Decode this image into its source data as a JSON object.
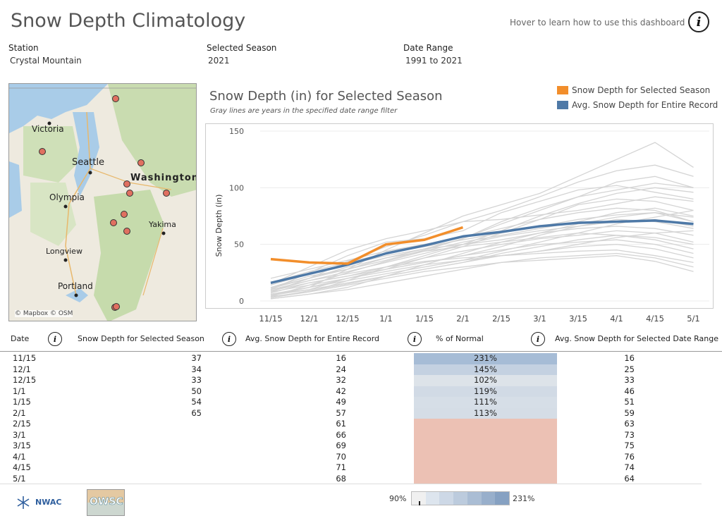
{
  "header": {
    "title": "Snow Depth Climatology",
    "hover_help": "Hover to learn how to use this dashboard"
  },
  "filters": {
    "station_label": "Station",
    "station_value": "Crystal Mountain",
    "season_label": "Selected Season",
    "season_value": "2021",
    "range_label": "Date Range",
    "range_value": "1991 to 2021"
  },
  "map": {
    "labels": {
      "victoria": "Victoria",
      "seattle": "Seattle",
      "washington": "Washington",
      "olympia": "Olympia",
      "yakima": "Yakima",
      "longview": "Longview",
      "portland": "Portland"
    },
    "attribution": "© Mapbox © OSM"
  },
  "chart_title": "Snow Depth (in) for Selected Season",
  "chart_subtitle": "Gray lines are years in the specified date range filter",
  "legend": {
    "selected": "Snow Depth for Selected Season",
    "average": "Avg. Snow Depth for Entire Record"
  },
  "colors": {
    "selected": "#f28e2b",
    "average": "#4e79a7",
    "gray_lines": "#d4d4d4",
    "below_normal": "#ecc1b4"
  },
  "chart_data": {
    "type": "line",
    "categories": [
      "11/15",
      "12/1",
      "12/15",
      "1/1",
      "1/15",
      "2/1",
      "2/15",
      "3/1",
      "3/15",
      "4/1",
      "4/15",
      "5/1"
    ],
    "ylabel": "Snow Depth (in)",
    "xlabel": "",
    "ylim": [
      0,
      150
    ],
    "yticks": [
      0,
      50,
      100,
      150
    ],
    "series": [
      {
        "name": "Snow Depth for Selected Season",
        "values": [
          37,
          34,
          33,
          50,
          54,
          65,
          null,
          null,
          null,
          null,
          null,
          null
        ]
      },
      {
        "name": "Avg. Snow Depth for Entire Record",
        "values": [
          16,
          24,
          32,
          42,
          49,
          57,
          61,
          66,
          69,
          70,
          71,
          68
        ]
      }
    ],
    "gray_series": [
      [
        5,
        12,
        28,
        45,
        60,
        75,
        85,
        95,
        110,
        125,
        140,
        118
      ],
      [
        8,
        20,
        35,
        48,
        58,
        70,
        80,
        92,
        105,
        115,
        120,
        110
      ],
      [
        10,
        25,
        40,
        52,
        55,
        62,
        78,
        88,
        98,
        102,
        96,
        90
      ],
      [
        3,
        8,
        18,
        30,
        40,
        50,
        62,
        75,
        86,
        95,
        100,
        96
      ],
      [
        12,
        22,
        28,
        38,
        46,
        55,
        70,
        82,
        92,
        105,
        110,
        100
      ],
      [
        6,
        10,
        20,
        28,
        38,
        48,
        60,
        72,
        85,
        90,
        88,
        80
      ],
      [
        15,
        30,
        45,
        55,
        62,
        70,
        72,
        76,
        80,
        86,
        92,
        88
      ],
      [
        4,
        14,
        25,
        35,
        44,
        52,
        58,
        64,
        70,
        78,
        82,
        75
      ],
      [
        20,
        28,
        36,
        44,
        50,
        56,
        64,
        72,
        78,
        82,
        80,
        70
      ],
      [
        2,
        6,
        12,
        22,
        32,
        42,
        52,
        60,
        68,
        74,
        78,
        70
      ],
      [
        9,
        18,
        26,
        34,
        42,
        50,
        57,
        62,
        66,
        70,
        72,
        66
      ],
      [
        14,
        24,
        32,
        40,
        46,
        50,
        54,
        60,
        64,
        66,
        64,
        58
      ],
      [
        7,
        16,
        22,
        30,
        38,
        44,
        50,
        55,
        58,
        62,
        60,
        52
      ],
      [
        11,
        20,
        30,
        38,
        44,
        48,
        52,
        56,
        60,
        58,
        54,
        46
      ],
      [
        5,
        12,
        20,
        28,
        34,
        40,
        45,
        50,
        52,
        54,
        50,
        42
      ],
      [
        3,
        9,
        15,
        22,
        28,
        34,
        40,
        44,
        48,
        50,
        46,
        38
      ],
      [
        8,
        14,
        20,
        26,
        32,
        36,
        40,
        42,
        44,
        45,
        40,
        34
      ],
      [
        2,
        6,
        10,
        16,
        22,
        28,
        34,
        38,
        40,
        42,
        38,
        30
      ],
      [
        10,
        18,
        24,
        30,
        35,
        38,
        40,
        44,
        50,
        56,
        60,
        62
      ],
      [
        6,
        12,
        18,
        24,
        30,
        36,
        44,
        52,
        60,
        68,
        74,
        80
      ],
      [
        12,
        20,
        28,
        36,
        45,
        55,
        68,
        80,
        92,
        98,
        104,
        100
      ],
      [
        4,
        8,
        14,
        20,
        26,
        30,
        34,
        36,
        38,
        40,
        35,
        26
      ],
      [
        16,
        26,
        34,
        42,
        48,
        54,
        60,
        66,
        72,
        76,
        78,
        74
      ],
      [
        9,
        16,
        22,
        28,
        34,
        40,
        48,
        58,
        66,
        72,
        70,
        64
      ],
      [
        5,
        10,
        16,
        22,
        28,
        34,
        42,
        48,
        54,
        58,
        56,
        50
      ]
    ]
  },
  "table": {
    "headers": {
      "date": "Date",
      "selected": "Snow Depth for Selected Season",
      "average": "Avg. Snow Depth for Entire Record",
      "pct": "% of Normal",
      "range_avg": "Avg. Snow Depth for Selected Date Range"
    },
    "rows": [
      {
        "date": "11/15",
        "selected": "37",
        "average": "16",
        "pct": "231%",
        "range_avg": "16",
        "pct_value": 2.31
      },
      {
        "date": "12/1",
        "selected": "34",
        "average": "24",
        "pct": "145%",
        "range_avg": "25",
        "pct_value": 1.45
      },
      {
        "date": "12/15",
        "selected": "33",
        "average": "32",
        "pct": "102%",
        "range_avg": "33",
        "pct_value": 1.02
      },
      {
        "date": "1/1",
        "selected": "50",
        "average": "42",
        "pct": "119%",
        "range_avg": "46",
        "pct_value": 1.19
      },
      {
        "date": "1/15",
        "selected": "54",
        "average": "49",
        "pct": "111%",
        "range_avg": "51",
        "pct_value": 1.11
      },
      {
        "date": "2/1",
        "selected": "65",
        "average": "57",
        "pct": "113%",
        "range_avg": "59",
        "pct_value": 1.13
      },
      {
        "date": "2/15",
        "selected": "",
        "average": "61",
        "pct": "",
        "range_avg": "63",
        "pct_value": null
      },
      {
        "date": "3/1",
        "selected": "",
        "average": "66",
        "pct": "",
        "range_avg": "73",
        "pct_value": null
      },
      {
        "date": "3/15",
        "selected": "",
        "average": "69",
        "pct": "",
        "range_avg": "75",
        "pct_value": null
      },
      {
        "date": "4/1",
        "selected": "",
        "average": "70",
        "pct": "",
        "range_avg": "76",
        "pct_value": null
      },
      {
        "date": "4/15",
        "selected": "",
        "average": "71",
        "pct": "",
        "range_avg": "74",
        "pct_value": null
      },
      {
        "date": "5/1",
        "selected": "",
        "average": "68",
        "pct": "",
        "range_avg": "64",
        "pct_value": null
      }
    ]
  },
  "scale": {
    "min_label": "90%",
    "max_label": "231%"
  },
  "footer": {
    "nwac_logo": "NWAC",
    "owsc_logo": "OWSC"
  }
}
